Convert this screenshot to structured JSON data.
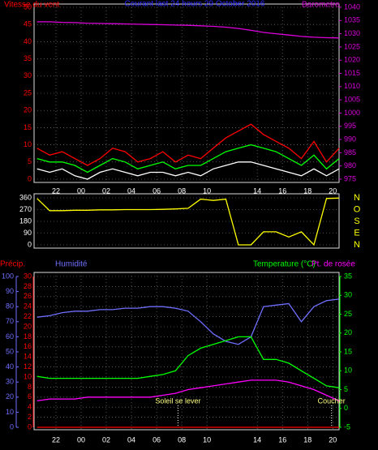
{
  "chart_data": [
    {
      "type": "line",
      "title": "Courant last 24 hours 29 October 2016",
      "title_color": "#2a2aff",
      "x": [
        -1.5,
        -0.5,
        0.5,
        1.5,
        2.5,
        3.5,
        4.5,
        5.5,
        6.5,
        7.5,
        8.5,
        9.5,
        10.5,
        11.5,
        12.5,
        13.5,
        14.5,
        15.5,
        16.5,
        17.5,
        18.5,
        19.5,
        20.5,
        21.5,
        22.5
      ],
      "xlim": [
        -1.74,
        22.5
      ],
      "xticks": [
        {
          "value": 0,
          "label": "22"
        },
        {
          "value": 2,
          "label": "00"
        },
        {
          "value": 4,
          "label": "02"
        },
        {
          "value": 6,
          "label": "04"
        },
        {
          "value": 8,
          "label": "06"
        },
        {
          "value": 10,
          "label": "08"
        },
        {
          "value": 12,
          "label": "10"
        },
        {
          "value": 16,
          "label": "14"
        },
        {
          "value": 18,
          "label": "16"
        },
        {
          "value": 20,
          "label": "18"
        },
        {
          "value": 22,
          "label": "20"
        }
      ],
      "ylim": [
        0,
        50
      ],
      "yticks": [
        0,
        5,
        10,
        15,
        20,
        25,
        30,
        35,
        40,
        45,
        50
      ],
      "y2lim": [
        975,
        1040
      ],
      "y2ticks": [
        975,
        980,
        985,
        990,
        995,
        1000,
        1005,
        1010,
        1015,
        1020,
        1025,
        1030,
        1035,
        1040
      ],
      "grid": true,
      "series": [
        {
          "name": "Vitesse du vent",
          "color": "#ff0000",
          "values": [
            9,
            7,
            8,
            6,
            4,
            6,
            9,
            8,
            5,
            6,
            8,
            5,
            7,
            6,
            9,
            12,
            14,
            16,
            13,
            11,
            9,
            6,
            11,
            5,
            9
          ]
        },
        {
          "color": "#00ff00",
          "values": [
            6,
            5,
            5,
            4,
            2,
            4,
            6,
            5,
            3,
            4,
            5,
            3,
            4,
            4,
            6,
            8,
            9,
            10,
            9,
            8,
            6,
            4,
            7,
            3,
            6
          ]
        },
        {
          "color": "#ffffff",
          "values": [
            3,
            2,
            3,
            1,
            0,
            2,
            3,
            2,
            1,
            2,
            2,
            1,
            2,
            1,
            3,
            4,
            5,
            5,
            4,
            3,
            2,
            1,
            3,
            1,
            3
          ]
        },
        {
          "name": "Barometre",
          "color": "#dd00dd",
          "axis": "y2",
          "values": [
            1034.5,
            1034.5,
            1034.3,
            1034.2,
            1034,
            1033.9,
            1033.8,
            1033.7,
            1033.6,
            1033.5,
            1033.4,
            1033.3,
            1033.2,
            1033,
            1032.8,
            1032.5,
            1032,
            1031.3,
            1030.5,
            1030,
            1029.5,
            1029,
            1028.7,
            1028.5,
            1028.4
          ]
        }
      ]
    },
    {
      "type": "line",
      "x": [
        -1.5,
        -0.5,
        0.5,
        1.5,
        2.5,
        3.5,
        4.5,
        5.5,
        6.5,
        7.5,
        8.5,
        9.5,
        10.5,
        11.5,
        12.5,
        13.5,
        14.5,
        15.5,
        16.5,
        17.5,
        18.5,
        19.5,
        20.5,
        21.5,
        22.5
      ],
      "xlim": [
        -1.74,
        22.5
      ],
      "ylim": [
        0,
        360
      ],
      "yticks": [
        0,
        90,
        180,
        270,
        360
      ],
      "grid": true,
      "compass_labels": [
        "N",
        "O",
        "S",
        "E",
        "N"
      ],
      "series": [
        {
          "color": "#ffff00",
          "values": [
            355,
            262,
            262,
            265,
            265,
            268,
            268,
            270,
            270,
            270,
            272,
            275,
            280,
            350,
            340,
            350,
            0,
            0,
            100,
            100,
            60,
            100,
            0,
            355,
            358
          ]
        }
      ]
    },
    {
      "type": "line",
      "x": [
        -1.5,
        -0.5,
        0.5,
        1.5,
        2.5,
        3.5,
        4.5,
        5.5,
        6.5,
        7.5,
        8.5,
        9.5,
        10.5,
        11.5,
        12.5,
        13.5,
        14.5,
        15.5,
        16.5,
        17.5,
        18.5,
        19.5,
        20.5,
        21.5,
        22.5
      ],
      "xlim": [
        -1.74,
        22.5
      ],
      "xticks": [
        {
          "value": 0,
          "label": "22"
        },
        {
          "value": 2,
          "label": "00"
        },
        {
          "value": 4,
          "label": "02"
        },
        {
          "value": 6,
          "label": "04"
        },
        {
          "value": 8,
          "label": "06"
        },
        {
          "value": 10,
          "label": "08"
        },
        {
          "value": 12,
          "label": "10"
        },
        {
          "value": 16,
          "label": "14"
        },
        {
          "value": 18,
          "label": "16"
        },
        {
          "value": 20,
          "label": "18"
        },
        {
          "value": 22,
          "label": "20"
        }
      ],
      "ylim": [
        0,
        30
      ],
      "yticks": [
        0,
        2,
        4,
        6,
        8,
        10,
        12,
        14,
        16,
        18,
        20,
        22,
        24,
        26,
        28,
        30
      ],
      "y2lim": [
        -5,
        35
      ],
      "y2ticks": [
        -5,
        0,
        5,
        10,
        15,
        20,
        25,
        30,
        35
      ],
      "y3lim": [
        0,
        100
      ],
      "y3ticks": [
        0,
        10,
        20,
        30,
        40,
        50,
        60,
        70,
        80,
        90,
        100
      ],
      "grid": true,
      "series": [
        {
          "name": "Précip.",
          "color": "#ff0000",
          "values": [
            0,
            0,
            0,
            0,
            0,
            0,
            0,
            0,
            0,
            0,
            0,
            0,
            0,
            0,
            0,
            0,
            0,
            0,
            0,
            0,
            0,
            0,
            0,
            0,
            0
          ]
        },
        {
          "name": "Humidité",
          "color": "#6f6fff",
          "axis": "y3",
          "values": [
            73,
            74,
            76,
            77,
            77,
            78,
            78,
            79,
            79,
            80,
            80,
            79,
            77,
            70,
            62,
            57,
            55,
            60,
            80,
            81,
            82,
            70,
            80,
            84,
            85
          ]
        },
        {
          "name": "Temperature (°C)",
          "color": "#00ff00",
          "axis": "y2",
          "values": [
            8.5,
            8,
            8,
            8,
            8,
            8,
            8,
            8,
            8,
            8.5,
            9,
            10,
            14,
            16,
            17,
            18,
            19,
            19,
            13,
            13,
            12,
            10,
            8,
            6,
            5.5
          ]
        },
        {
          "name": "Pt. de rosée",
          "color": "#ff00ff",
          "axis": "y2",
          "values": [
            2,
            2.5,
            2.5,
            2.5,
            3,
            3,
            3,
            3,
            3,
            3,
            3.5,
            4,
            5,
            5.5,
            6,
            6.5,
            7,
            7.5,
            7.5,
            7.5,
            7,
            6,
            5,
            3.5,
            2
          ]
        }
      ],
      "annotations": [
        {
          "x": 9.7,
          "text": "Soleil se lever"
        },
        {
          "x": 21.9,
          "text": "Coucher"
        }
      ]
    }
  ]
}
